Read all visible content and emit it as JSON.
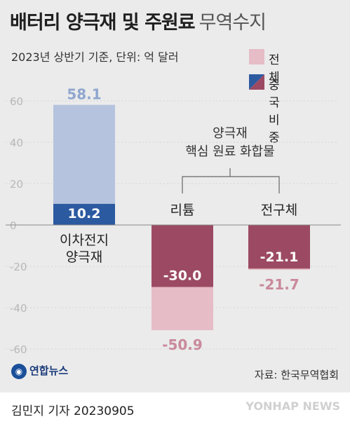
{
  "header": {
    "title_bold": "배터리 양극재 및 주원료",
    "title_light": "무역수지",
    "subtitle": "2023년 상반기 기준, 단위: 억 달러"
  },
  "legend": [
    {
      "label": "전체",
      "color": "#e6bcc6"
    },
    {
      "label": "중국 비중",
      "colors": [
        "#2b5aa0",
        "#9c4a63"
      ]
    }
  ],
  "group_label": [
    "양극재",
    "핵심 원료 화합물"
  ],
  "chart_data": {
    "type": "bar",
    "categories": [
      "이차전지 양극재",
      "리튬",
      "전구체"
    ],
    "category_lines": [
      [
        "이차전지",
        "양극재"
      ],
      [
        "리튬"
      ],
      [
        "전구체"
      ]
    ],
    "series": [
      {
        "name": "전체",
        "values": [
          58.1,
          -50.9,
          -21.7
        ]
      },
      {
        "name": "중국 비중",
        "values": [
          10.2,
          -30.0,
          -21.1
        ]
      }
    ],
    "value_labels": {
      "total": [
        "58.1",
        "-50.9",
        "-21.7"
      ],
      "china": [
        "10.2",
        "-30.0",
        "-21.1"
      ]
    },
    "ylim": [
      -60,
      60
    ],
    "yticks": [
      60,
      40,
      20,
      0,
      -20,
      -40,
      -60
    ],
    "grid": true,
    "colors": {
      "positive_total": "#b5c3de",
      "positive_china": "#2b5aa0",
      "negative_total": "#e6bcc6",
      "negative_china": "#9c4a63",
      "positive_label": "#8fa6cf",
      "negative_label": "#c98a9b",
      "axis_label": "#b8b8b8"
    }
  },
  "source": "자료: 한국무역협회",
  "logo": "연합뉴스",
  "byline": "김민지 기자  20230905",
  "watermark": "YONHAP NEWS"
}
